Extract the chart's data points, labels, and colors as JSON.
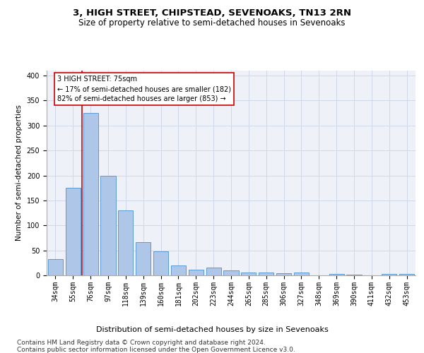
{
  "title1": "3, HIGH STREET, CHIPSTEAD, SEVENOAKS, TN13 2RN",
  "title2": "Size of property relative to semi-detached houses in Sevenoaks",
  "xlabel": "Distribution of semi-detached houses by size in Sevenoaks",
  "ylabel": "Number of semi-detached properties",
  "categories": [
    "34sqm",
    "55sqm",
    "76sqm",
    "97sqm",
    "118sqm",
    "139sqm",
    "160sqm",
    "181sqm",
    "202sqm",
    "223sqm",
    "244sqm",
    "265sqm",
    "285sqm",
    "306sqm",
    "327sqm",
    "348sqm",
    "369sqm",
    "390sqm",
    "411sqm",
    "432sqm",
    "453sqm"
  ],
  "values": [
    32,
    176,
    325,
    199,
    130,
    67,
    48,
    20,
    11,
    15,
    10,
    6,
    5,
    4,
    5,
    0,
    3,
    2,
    0,
    3,
    3
  ],
  "bar_color": "#aec6e8",
  "bar_edge_color": "#5b9bd5",
  "annotation_line1": "3 HIGH STREET: 75sqm",
  "annotation_line2": "← 17% of semi-detached houses are smaller (182)",
  "annotation_line3": "82% of semi-detached houses are larger (853) →",
  "vline_color": "#cc0000",
  "annotation_box_color": "#ffffff",
  "annotation_box_edge": "#cc0000",
  "grid_color": "#d0d8e8",
  "background_color": "#eef2f8",
  "footer": "Contains HM Land Registry data © Crown copyright and database right 2024.\nContains public sector information licensed under the Open Government Licence v3.0.",
  "ylim": [
    0,
    410
  ],
  "title1_fontsize": 9.5,
  "title2_fontsize": 8.5,
  "xlabel_fontsize": 8,
  "ylabel_fontsize": 7.5,
  "tick_fontsize": 7,
  "annotation_fontsize": 7,
  "footer_fontsize": 6.5
}
